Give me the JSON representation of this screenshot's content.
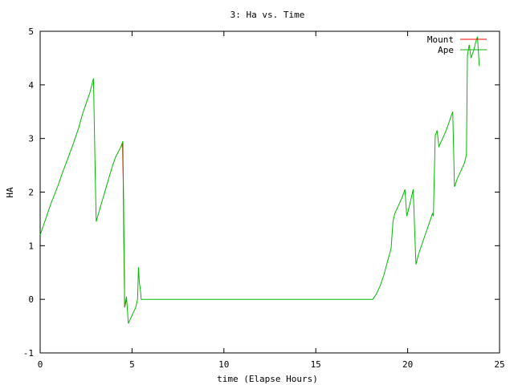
{
  "chart_data": {
    "type": "line",
    "title": "3: Ha vs. Time",
    "xlabel": "time (Elapse Hours)",
    "ylabel": "HA",
    "xlim": [
      0,
      25
    ],
    "ylim": [
      -1,
      5
    ],
    "x_ticks": [
      "0",
      "5",
      "10",
      "15",
      "20",
      "25"
    ],
    "y_ticks": [
      "-1",
      "0",
      "1",
      "2",
      "3",
      "4",
      "5"
    ],
    "grid": false,
    "legend_position": "top-right",
    "series": [
      {
        "name": "Mount",
        "color": "#ff0000",
        "points": [
          [
            4.4,
            2.85
          ],
          [
            4.48,
            2.9
          ],
          [
            4.52,
            2.25
          ],
          [
            4.55,
            1.2
          ],
          [
            4.58,
            0.4
          ],
          [
            4.6,
            -0.15
          ],
          [
            4.7,
            0.0
          ]
        ]
      },
      {
        "name": "Ape",
        "color": "#00bb00",
        "points": [
          [
            0.0,
            1.2
          ],
          [
            0.2,
            1.4
          ],
          [
            0.4,
            1.6
          ],
          [
            0.6,
            1.8
          ],
          [
            0.8,
            1.97
          ],
          [
            1.0,
            2.15
          ],
          [
            1.2,
            2.35
          ],
          [
            1.5,
            2.62
          ],
          [
            1.8,
            2.9
          ],
          [
            2.1,
            3.2
          ],
          [
            2.3,
            3.45
          ],
          [
            2.5,
            3.65
          ],
          [
            2.7,
            3.85
          ],
          [
            2.9,
            4.12
          ],
          [
            2.95,
            3.2
          ],
          [
            3.0,
            2.3
          ],
          [
            3.05,
            1.45
          ],
          [
            3.3,
            1.75
          ],
          [
            3.6,
            2.1
          ],
          [
            3.9,
            2.45
          ],
          [
            4.1,
            2.65
          ],
          [
            4.4,
            2.85
          ],
          [
            4.5,
            2.95
          ],
          [
            4.55,
            1.6
          ],
          [
            4.6,
            -0.15
          ],
          [
            4.7,
            0.05
          ],
          [
            4.8,
            -0.45
          ],
          [
            5.0,
            -0.3
          ],
          [
            5.2,
            -0.15
          ],
          [
            5.3,
            0.0
          ],
          [
            5.35,
            0.6
          ],
          [
            5.4,
            0.3
          ],
          [
            5.45,
            0.2
          ],
          [
            5.5,
            0.0
          ],
          [
            18.1,
            0.0
          ],
          [
            18.3,
            0.1
          ],
          [
            18.5,
            0.25
          ],
          [
            18.7,
            0.45
          ],
          [
            18.9,
            0.7
          ],
          [
            19.1,
            0.95
          ],
          [
            19.2,
            1.45
          ],
          [
            19.3,
            1.6
          ],
          [
            19.5,
            1.75
          ],
          [
            19.7,
            1.9
          ],
          [
            19.85,
            2.05
          ],
          [
            19.95,
            1.55
          ],
          [
            20.1,
            1.75
          ],
          [
            20.2,
            1.9
          ],
          [
            20.3,
            2.05
          ],
          [
            20.45,
            0.65
          ],
          [
            20.6,
            0.85
          ],
          [
            20.8,
            1.05
          ],
          [
            21.0,
            1.25
          ],
          [
            21.2,
            1.45
          ],
          [
            21.35,
            1.6
          ],
          [
            21.4,
            1.55
          ],
          [
            21.5,
            3.05
          ],
          [
            21.6,
            3.15
          ],
          [
            21.7,
            2.85
          ],
          [
            21.9,
            3.0
          ],
          [
            22.1,
            3.15
          ],
          [
            22.4,
            3.45
          ],
          [
            22.45,
            3.5
          ],
          [
            22.55,
            2.1
          ],
          [
            22.7,
            2.25
          ],
          [
            22.9,
            2.4
          ],
          [
            23.1,
            2.55
          ],
          [
            23.2,
            2.7
          ],
          [
            23.25,
            4.55
          ],
          [
            23.35,
            4.75
          ],
          [
            23.45,
            4.5
          ],
          [
            23.6,
            4.65
          ],
          [
            23.7,
            4.8
          ],
          [
            23.8,
            4.9
          ],
          [
            23.9,
            4.35
          ]
        ]
      }
    ]
  }
}
